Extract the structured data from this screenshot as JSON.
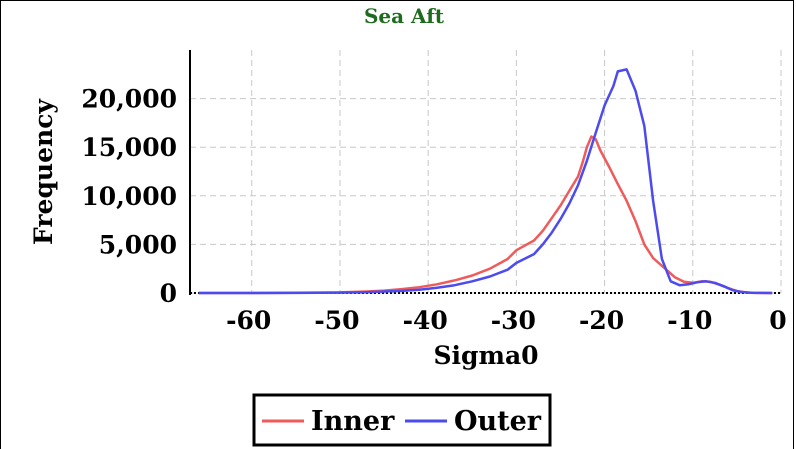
{
  "chart_data": {
    "type": "line",
    "title": "Sea Aft",
    "xlabel": "Sigma0",
    "ylabel": "Frequency",
    "xlim": [
      -67,
      0
    ],
    "ylim": [
      0,
      25000
    ],
    "xticks": [
      -60,
      -50,
      -40,
      -30,
      -20,
      -10,
      0
    ],
    "xtick_labels": [
      "-60",
      "-50",
      "-40",
      "-30",
      "-20",
      "-10",
      "0"
    ],
    "yticks": [
      0,
      5000,
      10000,
      15000,
      20000
    ],
    "ytick_labels": [
      "0",
      "5,000",
      "10,000",
      "15,000",
      "20,000"
    ],
    "grid": true,
    "legend_position": "bottom",
    "series": [
      {
        "name": "Inner",
        "color": "#ef5b5b",
        "points": [
          [
            -66,
            0
          ],
          [
            -60,
            5
          ],
          [
            -55,
            20
          ],
          [
            -50,
            60
          ],
          [
            -47,
            150
          ],
          [
            -45,
            250
          ],
          [
            -43,
            400
          ],
          [
            -41,
            600
          ],
          [
            -39,
            900
          ],
          [
            -37,
            1300
          ],
          [
            -35,
            1800
          ],
          [
            -33,
            2500
          ],
          [
            -31,
            3500
          ],
          [
            -30,
            4400
          ],
          [
            -28,
            5400
          ],
          [
            -27,
            6400
          ],
          [
            -26,
            7700
          ],
          [
            -25,
            9000
          ],
          [
            -24,
            10500
          ],
          [
            -23,
            12000
          ],
          [
            -22.5,
            13400
          ],
          [
            -22,
            15000
          ],
          [
            -21.5,
            16100
          ],
          [
            -21,
            15800
          ],
          [
            -20.5,
            14700
          ],
          [
            -19.5,
            13000
          ],
          [
            -18.5,
            11200
          ],
          [
            -17.5,
            9500
          ],
          [
            -16.5,
            7400
          ],
          [
            -15.5,
            5000
          ],
          [
            -14.5,
            3600
          ],
          [
            -13,
            2400
          ],
          [
            -12,
            1600
          ],
          [
            -11,
            1150
          ],
          [
            -10,
            1050
          ],
          [
            -9,
            1200
          ],
          [
            -8,
            1150
          ],
          [
            -7,
            850
          ],
          [
            -6,
            500
          ],
          [
            -5,
            200
          ],
          [
            -4,
            60
          ],
          [
            -3,
            10
          ],
          [
            -1,
            0
          ]
        ]
      },
      {
        "name": "Outer",
        "color": "#4b4bef",
        "points": [
          [
            -66,
            0
          ],
          [
            -60,
            5
          ],
          [
            -55,
            15
          ],
          [
            -50,
            40
          ],
          [
            -47,
            80
          ],
          [
            -45,
            150
          ],
          [
            -43,
            220
          ],
          [
            -41,
            330
          ],
          [
            -39,
            550
          ],
          [
            -37,
            800
          ],
          [
            -35,
            1200
          ],
          [
            -33,
            1700
          ],
          [
            -31,
            2400
          ],
          [
            -30,
            3100
          ],
          [
            -28,
            4000
          ],
          [
            -27,
            5000
          ],
          [
            -26,
            6200
          ],
          [
            -25,
            7600
          ],
          [
            -24,
            9200
          ],
          [
            -23,
            11100
          ],
          [
            -22,
            13600
          ],
          [
            -21,
            16500
          ],
          [
            -20,
            19300
          ],
          [
            -19,
            21300
          ],
          [
            -18.5,
            22800
          ],
          [
            -17.5,
            23000
          ],
          [
            -16.5,
            20800
          ],
          [
            -15.5,
            17200
          ],
          [
            -14.5,
            9500
          ],
          [
            -13.5,
            3500
          ],
          [
            -12.5,
            1200
          ],
          [
            -11.5,
            800
          ],
          [
            -10.5,
            900
          ],
          [
            -9.5,
            1100
          ],
          [
            -8.5,
            1200
          ],
          [
            -7.5,
            1050
          ],
          [
            -6.5,
            700
          ],
          [
            -5.5,
            300
          ],
          [
            -4.5,
            100
          ],
          [
            -3.5,
            20
          ],
          [
            -1,
            0
          ]
        ]
      }
    ]
  }
}
